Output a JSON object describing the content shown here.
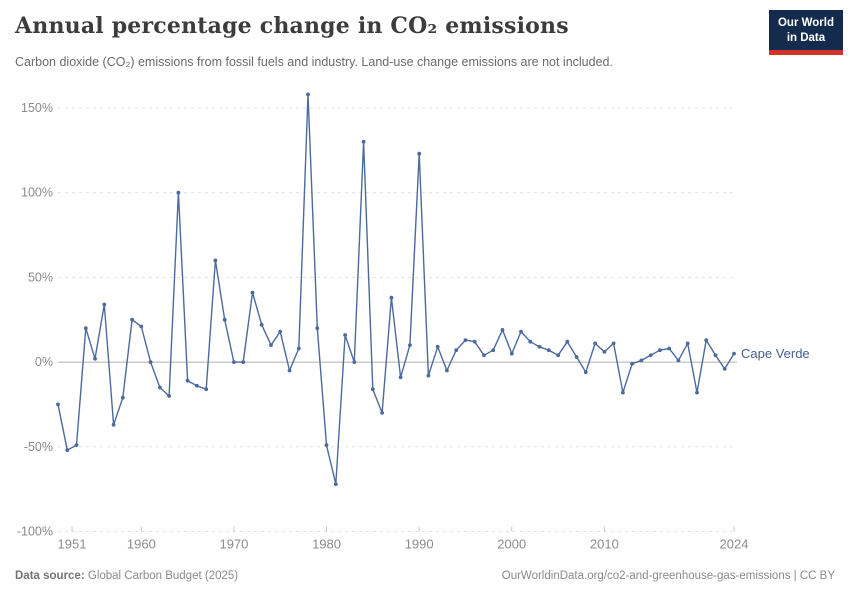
{
  "header": {
    "title": "Annual percentage change in CO₂ emissions",
    "subtitle": "Carbon dioxide (CO₂) emissions from fossil fuels and industry. Land-use change emissions are not included.",
    "logo": {
      "line1": "Our World",
      "line2": "in Data"
    }
  },
  "footer": {
    "source_label": "Data source:",
    "source": "Global Carbon Budget (2025)",
    "attribution": "OurWorldinData.org/co2-and-greenhouse-gas-emissions | CC BY"
  },
  "chart_data": {
    "type": "line",
    "entity": "Cape Verde",
    "unit": "%",
    "x": [
      1951,
      1952,
      1953,
      1954,
      1955,
      1956,
      1957,
      1958,
      1959,
      1960,
      1961,
      1962,
      1963,
      1964,
      1965,
      1966,
      1967,
      1968,
      1969,
      1970,
      1971,
      1972,
      1973,
      1974,
      1975,
      1976,
      1977,
      1978,
      1979,
      1980,
      1981,
      1982,
      1983,
      1984,
      1985,
      1986,
      1987,
      1988,
      1989,
      1990,
      1991,
      1992,
      1993,
      1994,
      1995,
      1996,
      1997,
      1998,
      1999,
      2000,
      2001,
      2002,
      2003,
      2004,
      2005,
      2006,
      2007,
      2008,
      2009,
      2010,
      2011,
      2012,
      2013,
      2014,
      2015,
      2016,
      2017,
      2018,
      2019,
      2020,
      2021,
      2022,
      2023,
      2024
    ],
    "values": [
      -25,
      -52,
      -49,
      20,
      2,
      34,
      -37,
      -21,
      25,
      21,
      0,
      -15,
      -20,
      100,
      -11,
      -14,
      -16,
      60,
      25,
      0,
      0,
      41,
      22,
      10,
      18,
      -5,
      8,
      158,
      20,
      -49,
      -72,
      16,
      0,
      130,
      -16,
      -30,
      38,
      -9,
      10,
      123,
      -8,
      9,
      -5,
      7,
      13,
      12,
      4,
      7,
      19,
      5,
      18,
      12,
      9,
      7,
      4,
      12,
      3,
      -6,
      11,
      6,
      11,
      -18,
      -1,
      1,
      4,
      7,
      8,
      1,
      11,
      -18,
      13,
      4,
      -4,
      5
    ],
    "xlim": [
      1951,
      2024
    ],
    "ylim": [
      -100,
      160
    ],
    "yticks": [
      {
        "v": 150,
        "label": "150%"
      },
      {
        "v": 100,
        "label": "100%"
      },
      {
        "v": 50,
        "label": "50%"
      },
      {
        "v": 0,
        "label": "0%"
      },
      {
        "v": -50,
        "label": "-50%"
      },
      {
        "v": -100,
        "label": "-100%"
      }
    ],
    "xticks": [
      {
        "v": 1951,
        "label": "1951"
      },
      {
        "v": 1960,
        "label": "1960"
      },
      {
        "v": 1970,
        "label": "1970"
      },
      {
        "v": 1980,
        "label": "1980"
      },
      {
        "v": 1990,
        "label": "1990"
      },
      {
        "v": 2000,
        "label": "2000"
      },
      {
        "v": 2010,
        "label": "2010"
      },
      {
        "v": 2024,
        "label": "2024"
      }
    ],
    "grid": true,
    "legend_position": "end-of-line",
    "colors": {
      "line": "#4c6a9c",
      "entity_label": "#44618f",
      "grid": "#e0e0e0",
      "zero_line": "#b0b0b0",
      "tick_text": "#8b8b8b",
      "tick_mark": "#c8c8c8"
    }
  }
}
